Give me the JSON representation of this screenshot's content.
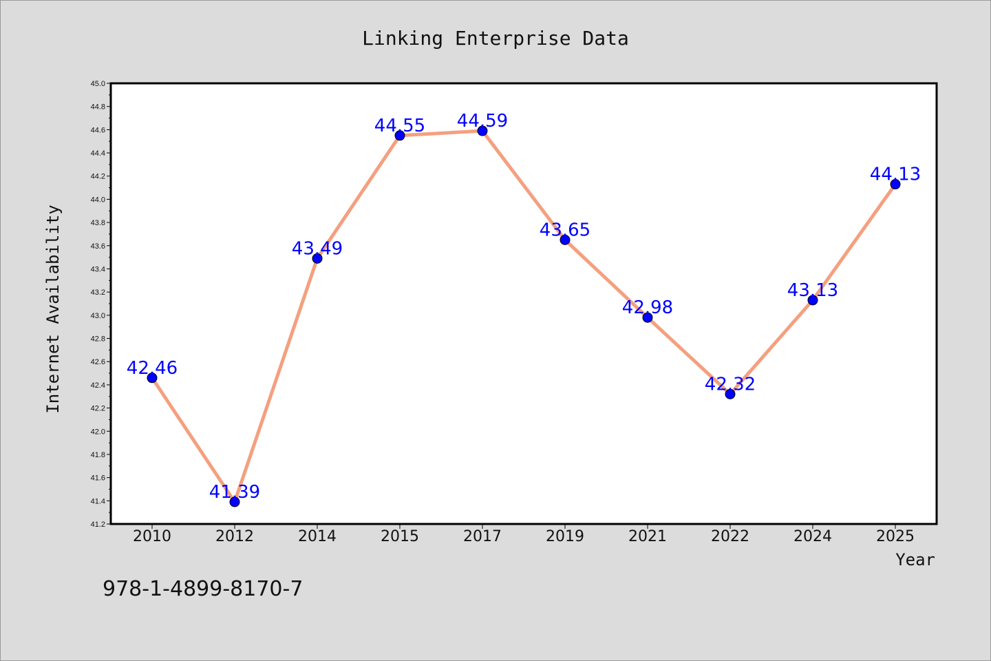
{
  "chart_data": {
    "type": "line",
    "title": "Linking Enterprise Data",
    "xlabel": "Year",
    "ylabel": "Internet Availability",
    "categories": [
      "2010",
      "2012",
      "2014",
      "2015",
      "2017",
      "2019",
      "2021",
      "2022",
      "2024",
      "2025"
    ],
    "values": [
      42.46,
      41.39,
      43.49,
      44.55,
      44.59,
      43.65,
      42.98,
      42.32,
      43.13,
      44.13
    ],
    "data_labels": [
      "42.46",
      "41.39",
      "43.49",
      "44.55",
      "44.59",
      "43.65",
      "42.98",
      "42.32",
      "43.13",
      "44.13"
    ],
    "ylim": [
      41.2,
      45.0
    ],
    "yticks": [
      "41.2",
      "41.4",
      "41.6",
      "41.8",
      "42.0",
      "42.2",
      "42.4",
      "42.6",
      "42.8",
      "43.0",
      "43.2",
      "43.4",
      "43.6",
      "43.8",
      "44.0",
      "44.2",
      "44.4",
      "44.6",
      "44.8",
      "45.0"
    ],
    "grid": false,
    "line_color": "#f4a07f",
    "marker_color": "#0000ff",
    "label_color": "#0000ff"
  },
  "annotation": {
    "isbn": "978-1-4899-8170-7"
  }
}
